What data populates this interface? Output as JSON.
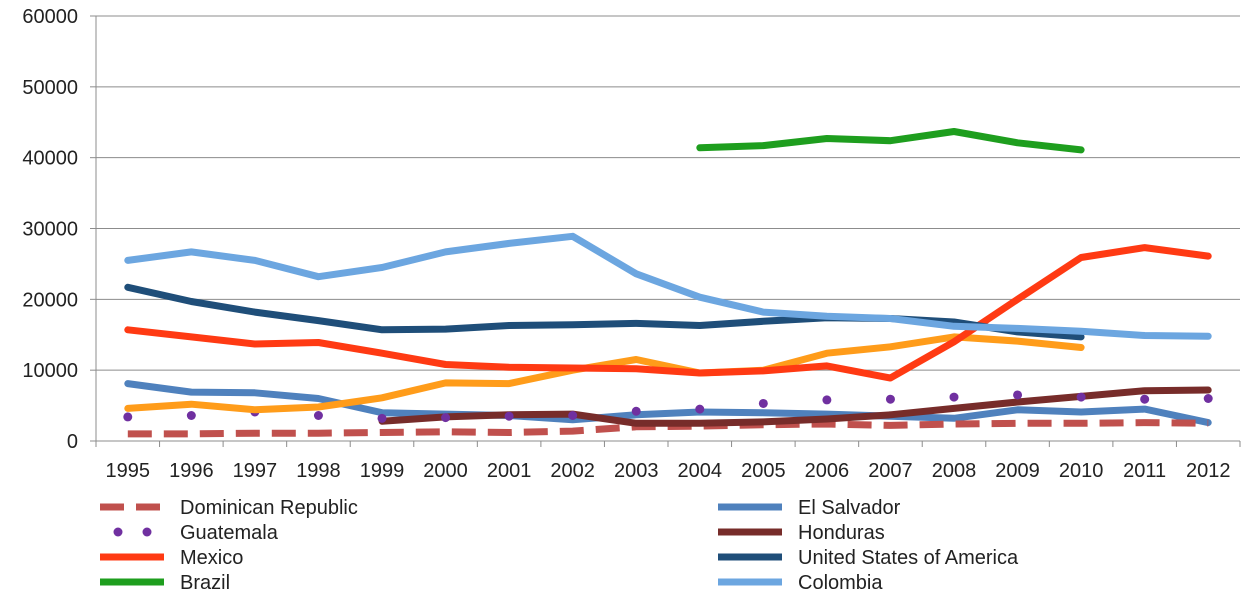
{
  "chart_data": {
    "type": "line",
    "title": "",
    "xlabel": "",
    "ylabel": "",
    "ylim": [
      0,
      60000
    ],
    "yticks": [
      "0",
      "10000",
      "20000",
      "30000",
      "40000",
      "50000",
      "60000"
    ],
    "grid": true,
    "legend_position": "bottom",
    "categories": [
      "1995",
      "1996",
      "1997",
      "1998",
      "1999",
      "2000",
      "2001",
      "2002",
      "2003",
      "2004",
      "2005",
      "2006",
      "2007",
      "2008",
      "2009",
      "2010",
      "2011",
      "2012"
    ],
    "series": [
      {
        "name": "Dominican Republic",
        "color": "#c0504d",
        "style": "dashed",
        "values": [
          1000,
          1000,
          1100,
          1100,
          1200,
          1300,
          1200,
          1400,
          2000,
          2100,
          2300,
          2400,
          2200,
          2400,
          2500,
          2500,
          2600,
          2500
        ]
      },
      {
        "name": "El Salvador",
        "color": "#4f81bd",
        "style": "solid",
        "values": [
          8100,
          6900,
          6800,
          6000,
          4000,
          3800,
          3600,
          3000,
          3700,
          4100,
          4000,
          3800,
          3500,
          3200,
          4400,
          4100,
          4500,
          2600
        ]
      },
      {
        "name": "Guatemala",
        "color": "#7030a0",
        "style": "dotted",
        "values": [
          3400,
          3600,
          4100,
          3600,
          3200,
          3300,
          3500,
          3600,
          4200,
          4500,
          5300,
          5800,
          5900,
          6200,
          6500,
          6200,
          5900,
          6000
        ]
      },
      {
        "name": "Honduras",
        "color": "#772c2a",
        "style": "solid",
        "values": [
          null,
          null,
          null,
          null,
          2800,
          3400,
          3700,
          3800,
          2500,
          2500,
          2700,
          3100,
          3700,
          4600,
          5500,
          6300,
          7100,
          7200
        ]
      },
      {
        "name": "Mexico",
        "color": "#ff3a13",
        "style": "solid",
        "values": [
          15700,
          14700,
          13700,
          13900,
          12400,
          10800,
          10400,
          10300,
          10200,
          9600,
          9900,
          10600,
          8900,
          14000,
          20000,
          25900,
          27300,
          26100
        ]
      },
      {
        "name": "United States of America",
        "color": "#1f4e79",
        "style": "solid",
        "values": [
          21700,
          19700,
          18200,
          17000,
          15700,
          15800,
          16300,
          16400,
          16600,
          16300,
          16900,
          17400,
          17300,
          16800,
          15400,
          14700,
          null,
          null
        ]
      },
      {
        "name": "Brazil",
        "color": "#1e9e1e",
        "style": "solid",
        "values": [
          null,
          null,
          null,
          null,
          null,
          null,
          null,
          null,
          null,
          41400,
          41700,
          42700,
          42400,
          43700,
          42100,
          41100,
          null,
          null
        ]
      },
      {
        "name": "Colombia",
        "color": "#6ca6e0",
        "style": "solid",
        "values": [
          25500,
          26700,
          25500,
          23200,
          24500,
          26700,
          27900,
          28900,
          23600,
          20300,
          18200,
          17600,
          17300,
          16200,
          15900,
          15500,
          14900,
          14800
        ]
      },
      {
        "name": "",
        "color": "#ff9c1a",
        "style": "solid",
        "values": [
          4600,
          5200,
          4400,
          4800,
          6100,
          8200,
          8100,
          10000,
          11500,
          9600,
          10000,
          12400,
          13300,
          14700,
          14100,
          13200,
          null,
          null
        ]
      }
    ]
  }
}
